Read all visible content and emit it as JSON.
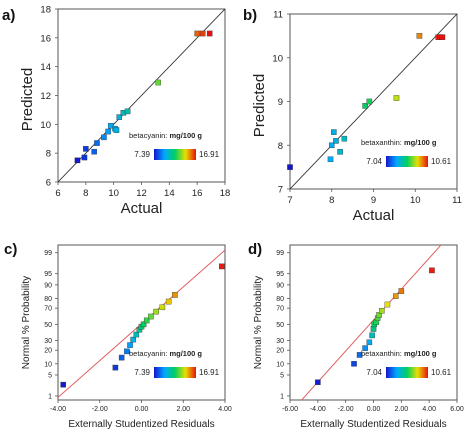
{
  "panel_labels": [
    "a)",
    "b)",
    "c)",
    "d)"
  ],
  "chart_data": [
    {
      "type": "scatter",
      "panel": "a)",
      "xlabel": "Actual",
      "ylabel": "Predicted",
      "xlim": [
        6,
        18
      ],
      "ylim": [
        6,
        18
      ],
      "xticks": [
        6,
        8,
        10,
        12,
        14,
        16,
        18
      ],
      "yticks": [
        6,
        8,
        10,
        12,
        14,
        16,
        18
      ],
      "fit_line": [
        [
          6,
          6
        ],
        [
          18,
          18
        ]
      ],
      "legend": {
        "label": "betacyanin:",
        "unit": "mg/100 g",
        "min": "7.39",
        "max": "16.91",
        "position": "bottom-right"
      },
      "series": [
        {
          "points": [
            [
              7.4,
              7.5
            ],
            [
              7.9,
              7.7
            ],
            [
              8.0,
              8.3
            ],
            [
              8.6,
              8.1
            ],
            [
              8.8,
              8.7
            ],
            [
              9.3,
              9.1
            ],
            [
              9.6,
              9.5
            ],
            [
              9.8,
              9.9
            ],
            [
              10.1,
              9.7
            ],
            [
              10.2,
              9.6
            ],
            [
              10.4,
              10.5
            ],
            [
              10.7,
              10.8
            ],
            [
              11.0,
              10.9
            ],
            [
              13.2,
              12.9
            ],
            [
              16.0,
              16.3
            ],
            [
              16.4,
              16.3
            ],
            [
              16.9,
              16.3
            ]
          ]
        }
      ]
    },
    {
      "type": "scatter",
      "panel": "b)",
      "xlabel": "Actual",
      "ylabel": "Predicted",
      "xlim": [
        7,
        11
      ],
      "ylim": [
        7,
        11
      ],
      "xticks": [
        7,
        8,
        9,
        10,
        11
      ],
      "yticks": [
        7,
        8,
        9,
        10,
        11
      ],
      "fit_line": [
        [
          7,
          7
        ],
        [
          11,
          11
        ]
      ],
      "legend": {
        "label": "betaxanthin:",
        "unit": "mg/100 g",
        "min": "7.04",
        "max": "10.61",
        "position": "bottom-right"
      },
      "series": [
        {
          "points": [
            [
              7.0,
              7.5
            ],
            [
              7.97,
              7.68
            ],
            [
              8.0,
              8.0
            ],
            [
              8.05,
              8.3
            ],
            [
              8.1,
              8.1
            ],
            [
              8.2,
              7.85
            ],
            [
              8.3,
              8.15
            ],
            [
              8.8,
              8.9
            ],
            [
              8.9,
              9.0
            ],
            [
              9.55,
              9.08
            ],
            [
              10.1,
              10.5
            ],
            [
              10.55,
              10.47
            ],
            [
              10.6,
              10.47
            ],
            [
              10.65,
              10.47
            ]
          ]
        }
      ]
    },
    {
      "type": "scatter",
      "panel": "c)",
      "xlabel": "Externally Studentized Residuals",
      "ylabel": "Normal % Probability",
      "xlim": [
        -4.0,
        4.0
      ],
      "xticks": [
        "-4.00",
        "-2.00",
        "0.00",
        "2.00",
        "4.00"
      ],
      "xtick_values": [
        -4,
        -2,
        0,
        2,
        4
      ],
      "yticks": [
        "1",
        "5",
        "10",
        "20",
        "30",
        "50",
        "70",
        "80",
        "90",
        "95",
        "99"
      ],
      "ylim": [
        0.7,
        99.5
      ],
      "y_scale": "normal-probability",
      "fit_line": [
        [
          -4.0,
          0.88
        ],
        [
          4.0,
          99.2
        ]
      ],
      "legend": {
        "label": "betacyanin:",
        "unit": "mg/100 g",
        "min": "7.39",
        "max": "16.91",
        "position": "bottom-right"
      },
      "series": [
        {
          "points": [
            [
              -3.75,
              2.5
            ],
            [
              -1.25,
              8
            ],
            [
              -0.95,
              14
            ],
            [
              -0.7,
              19
            ],
            [
              -0.55,
              25
            ],
            [
              -0.4,
              31
            ],
            [
              -0.25,
              37
            ],
            [
              -0.1,
              43
            ],
            [
              0.0,
              47
            ],
            [
              0.1,
              50
            ],
            [
              0.25,
              55
            ],
            [
              0.45,
              60
            ],
            [
              0.7,
              66
            ],
            [
              1.0,
              71
            ],
            [
              1.3,
              77
            ],
            [
              1.6,
              83
            ],
            [
              3.85,
              97
            ]
          ]
        }
      ]
    },
    {
      "type": "scatter",
      "panel": "d)",
      "xlabel": "Externally Studentized Residuals",
      "ylabel": "Normal % Probability",
      "xlim": [
        -6.0,
        6.0
      ],
      "xticks": [
        "-6.00",
        "-4.00",
        "-2.00",
        "0.00",
        "2.00",
        "4.00",
        "6.00"
      ],
      "xtick_values": [
        -6,
        -4,
        -2,
        0,
        2,
        4,
        6
      ],
      "yticks": [
        "1",
        "5",
        "10",
        "20",
        "30",
        "50",
        "70",
        "80",
        "90",
        "95",
        "99"
      ],
      "ylim": [
        0.7,
        99.5
      ],
      "y_scale": "normal-probability",
      "fit_line": [
        [
          -6.0,
          0.2
        ],
        [
          5.0,
          99.6
        ]
      ],
      "legend": {
        "label": "betaxanthin:",
        "unit": "mg/100 g",
        "min": "7.04",
        "max": "10.61",
        "position": "bottom-right"
      },
      "series": [
        {
          "points": [
            [
              -4.0,
              3
            ],
            [
              -1.4,
              10
            ],
            [
              -1.0,
              16
            ],
            [
              -0.6,
              22
            ],
            [
              -0.3,
              28
            ],
            [
              -0.1,
              36
            ],
            [
              0.0,
              44
            ],
            [
              0.05,
              50
            ],
            [
              0.2,
              53
            ],
            [
              0.3,
              58
            ],
            [
              0.4,
              62
            ],
            [
              0.6,
              67
            ],
            [
              1.0,
              74
            ],
            [
              1.6,
              82
            ],
            [
              2.0,
              86
            ],
            [
              4.2,
              96
            ]
          ]
        }
      ]
    }
  ]
}
